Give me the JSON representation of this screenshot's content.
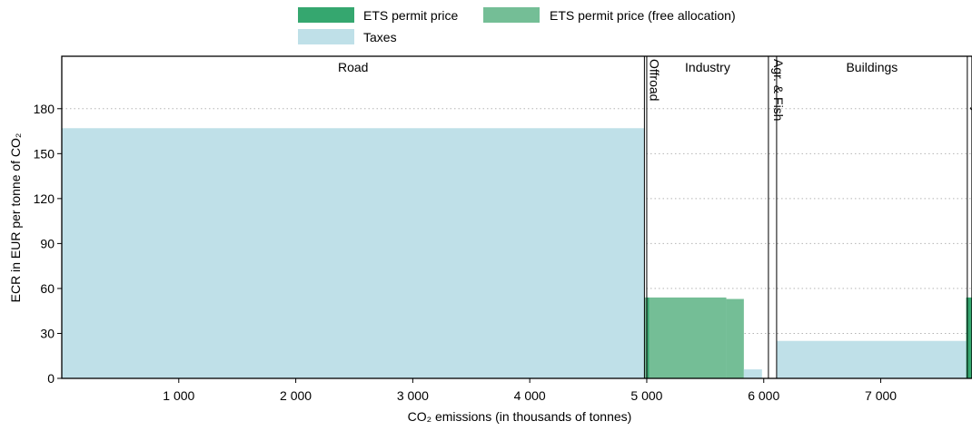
{
  "chart_data": {
    "type": "bar",
    "subtype": "variable-width step chart",
    "legend": {
      "placement": "top-center",
      "entries": [
        {
          "key": "ets",
          "label": "ETS permit price",
          "color": "#35a76f"
        },
        {
          "key": "ets_free",
          "label": "ETS permit price (free allocation)",
          "color": "#74be96"
        },
        {
          "key": "taxes",
          "label": "Taxes",
          "color": "#bfe0e8"
        }
      ]
    },
    "xlabel": "CO₂ emissions (in thousands of tonnes)",
    "ylabel": "ECR in EUR per tonne of CO₂",
    "xlim": [
      0,
      7780
    ],
    "ylim": [
      0,
      215
    ],
    "xticks": [
      {
        "value": 1000,
        "label": "1 000"
      },
      {
        "value": 2000,
        "label": "2 000"
      },
      {
        "value": 3000,
        "label": "3 000"
      },
      {
        "value": 4000,
        "label": "4 000"
      },
      {
        "value": 5000,
        "label": "5 000"
      },
      {
        "value": 6000,
        "label": "6 000"
      },
      {
        "value": 7000,
        "label": "7 000"
      }
    ],
    "yticks": [
      0,
      30,
      60,
      90,
      120,
      150,
      180
    ],
    "grid": "horizontal dotted",
    "sectors": [
      {
        "name": "Road",
        "start": 0,
        "end": 4980,
        "label_rotated": false
      },
      {
        "name": "Offroad",
        "start": 4980,
        "end": 5000,
        "label_rotated": true
      },
      {
        "name": "Industry",
        "start": 5000,
        "end": 6040,
        "label_rotated": false
      },
      {
        "name": "Agr. & Fish",
        "start": 6040,
        "end": 6110,
        "label_rotated": true
      },
      {
        "name": "Buildings",
        "start": 6110,
        "end": 7740,
        "label_rotated": false
      },
      {
        "name": "Electricity",
        "start": 7740,
        "end": 7780,
        "label_rotated": true
      }
    ],
    "segments": [
      {
        "series": "taxes",
        "start": 0,
        "end": 4980,
        "value": 167
      },
      {
        "series": "ets_free",
        "start": 4980,
        "end": 4995,
        "value": 54
      },
      {
        "series": "ets",
        "start": 4995,
        "end": 5020,
        "value": 54
      },
      {
        "series": "ets_free",
        "start": 5020,
        "end": 5680,
        "value": 54
      },
      {
        "series": "ets_free",
        "start": 5680,
        "end": 5830,
        "value": 53
      },
      {
        "series": "taxes",
        "start": 5830,
        "end": 5985,
        "value": 6
      },
      {
        "series": "taxes",
        "start": 6110,
        "end": 7730,
        "value": 25
      },
      {
        "series": "ets",
        "start": 7730,
        "end": 7780,
        "value": 54
      }
    ]
  }
}
